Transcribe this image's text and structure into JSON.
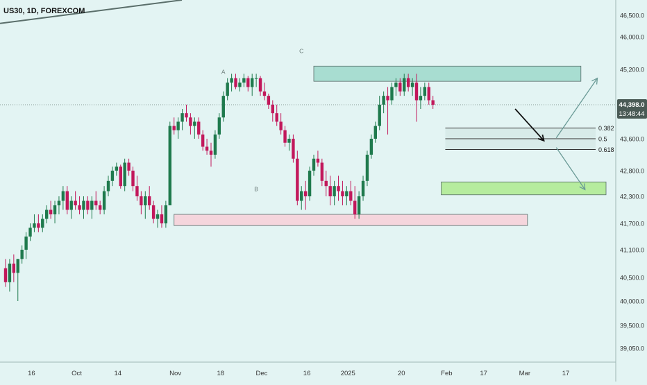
{
  "header": {
    "symbol_title": "US30, 1D, FOREXCOM"
  },
  "price_badge": {
    "price": "44,398.0",
    "countdown": "13:48:44"
  },
  "colors": {
    "background": "#e3f4f3",
    "up_candle": "#1f7a4d",
    "down_candle": "#c2185b",
    "resistance_zone": "#a8ddd1",
    "support_zone": "#f5d5dc",
    "target_zone": "#b6ec9e",
    "fib_zone": "#d4e8e6",
    "axis_text": "#333333",
    "badge_bg": "#4a5a55"
  },
  "chart_data": {
    "type": "candlestick",
    "title": "US30, 1D, FOREXCOM",
    "xlabel": "",
    "ylabel": "",
    "y_range": [
      38900,
      46800
    ],
    "y_ticks": [
      {
        "value": 46500,
        "label": "46,500.0"
      },
      {
        "value": 46000,
        "label": "46,000.0"
      },
      {
        "value": 45200,
        "label": "45,200.0"
      },
      {
        "value": 44398,
        "label": ""
      },
      {
        "value": 43600,
        "label": "43,600.0"
      },
      {
        "value": 42800,
        "label": "42,800.0"
      },
      {
        "value": 42300,
        "label": "42,300.0"
      },
      {
        "value": 41700,
        "label": "41,700.0"
      },
      {
        "value": 41100,
        "label": "41,100.0"
      },
      {
        "value": 40500,
        "label": "40,500.0"
      },
      {
        "value": 40000,
        "label": "40,000.0"
      },
      {
        "value": 39500,
        "label": "39,500.0"
      },
      {
        "value": 39050,
        "label": "39,050.0"
      }
    ],
    "x_range": [
      0,
      136
    ],
    "x_ticks": [
      {
        "index": 7,
        "label": "16"
      },
      {
        "index": 18,
        "label": "Oct"
      },
      {
        "index": 28,
        "label": "14"
      },
      {
        "index": 42,
        "label": "Nov"
      },
      {
        "index": 53,
        "label": "18"
      },
      {
        "index": 63,
        "label": "Dec"
      },
      {
        "index": 74,
        "label": "16"
      },
      {
        "index": 84,
        "label": "2025"
      },
      {
        "index": 97,
        "label": "20"
      },
      {
        "index": 108,
        "label": "Feb"
      },
      {
        "index": 117,
        "label": "17"
      },
      {
        "index": 127,
        "label": "Mar"
      },
      {
        "index": 137,
        "label": "17"
      }
    ],
    "ohlc": [
      [
        40700,
        40900,
        40300,
        40400
      ],
      [
        40400,
        40900,
        40200,
        40800
      ],
      [
        40800,
        41000,
        40400,
        40600
      ],
      [
        40600,
        40900,
        40000,
        40900
      ],
      [
        40900,
        41200,
        40800,
        41100
      ],
      [
        41100,
        41500,
        40900,
        41400
      ],
      [
        41400,
        41700,
        41300,
        41600
      ],
      [
        41600,
        41900,
        41500,
        41700
      ],
      [
        41700,
        41900,
        41500,
        41600
      ],
      [
        41600,
        41900,
        41500,
        41800
      ],
      [
        41800,
        42100,
        41700,
        42000
      ],
      [
        42000,
        42200,
        41800,
        41900
      ],
      [
        41900,
        42200,
        41700,
        42100
      ],
      [
        42100,
        42300,
        41900,
        42200
      ],
      [
        42200,
        42500,
        42000,
        42400
      ],
      [
        42400,
        42500,
        41900,
        42000
      ],
      [
        42000,
        42300,
        41800,
        42200
      ],
      [
        42200,
        42400,
        42000,
        42100
      ],
      [
        42100,
        42300,
        41900,
        42000
      ],
      [
        42000,
        42300,
        41800,
        42200
      ],
      [
        42200,
        42300,
        41900,
        42000
      ],
      [
        42000,
        42300,
        41800,
        42200
      ],
      [
        42200,
        42400,
        42000,
        42100
      ],
      [
        42100,
        42200,
        41900,
        42000
      ],
      [
        42000,
        42500,
        41900,
        42400
      ],
      [
        42400,
        42700,
        42300,
        42600
      ],
      [
        42600,
        42900,
        42500,
        42800
      ],
      [
        42800,
        43000,
        42700,
        42900
      ],
      [
        42900,
        42950,
        42450,
        42500
      ],
      [
        42500,
        43100,
        42400,
        43000
      ],
      [
        43000,
        43100,
        42700,
        42800
      ],
      [
        42800,
        42900,
        42400,
        42500
      ],
      [
        42500,
        42700,
        42200,
        42300
      ],
      [
        42300,
        42400,
        41900,
        42100
      ],
      [
        42100,
        42400,
        41800,
        42300
      ],
      [
        42300,
        42500,
        42000,
        42100
      ],
      [
        42100,
        42200,
        41700,
        41800
      ],
      [
        41800,
        42000,
        41600,
        41900
      ],
      [
        41900,
        42100,
        41600,
        41700
      ],
      [
        41700,
        42200,
        41600,
        42100
      ],
      [
        42100,
        44000,
        42100,
        43900
      ],
      [
        43900,
        44100,
        43700,
        43800
      ],
      [
        43800,
        44100,
        43600,
        44000
      ],
      [
        44000,
        44300,
        43800,
        44200
      ],
      [
        44200,
        44400,
        44000,
        44100
      ],
      [
        44100,
        44200,
        43700,
        43900
      ],
      [
        43900,
        44100,
        43600,
        44000
      ],
      [
        44000,
        44100,
        43600,
        43700
      ],
      [
        43700,
        43800,
        43300,
        43400
      ],
      [
        43400,
        43600,
        43200,
        43300
      ],
      [
        43300,
        43500,
        42900,
        43200
      ],
      [
        43200,
        43800,
        43100,
        43700
      ],
      [
        43700,
        44200,
        43600,
        44100
      ],
      [
        44100,
        44700,
        44000,
        44600
      ],
      [
        44600,
        45000,
        44500,
        44900
      ],
      [
        44900,
        45100,
        44700,
        45000
      ],
      [
        45000,
        45100,
        44750,
        44800
      ],
      [
        44800,
        45000,
        44700,
        44900
      ],
      [
        44900,
        45100,
        44800,
        45000
      ],
      [
        45000,
        45050,
        44700,
        44800
      ],
      [
        44800,
        45100,
        44600,
        45000
      ],
      [
        45000,
        45100,
        44800,
        45000
      ],
      [
        45000,
        45050,
        44600,
        44700
      ],
      [
        44700,
        44900,
        44500,
        44600
      ],
      [
        44600,
        44650,
        44300,
        44400
      ],
      [
        44400,
        44500,
        44000,
        44200
      ],
      [
        44200,
        44400,
        43900,
        44000
      ],
      [
        44000,
        44200,
        43700,
        43800
      ],
      [
        43800,
        43900,
        43400,
        43500
      ],
      [
        43500,
        43700,
        43300,
        43600
      ],
      [
        43600,
        43700,
        43000,
        43100
      ],
      [
        43100,
        43300,
        42100,
        42200
      ],
      [
        42200,
        42500,
        42000,
        42400
      ],
      [
        42400,
        42600,
        42000,
        42300
      ],
      [
        42300,
        42900,
        42200,
        42800
      ],
      [
        42800,
        43200,
        42700,
        43100
      ],
      [
        43100,
        43300,
        42900,
        43000
      ],
      [
        43000,
        43100,
        42500,
        42600
      ],
      [
        42600,
        42800,
        42300,
        42500
      ],
      [
        42500,
        42700,
        42100,
        42300
      ],
      [
        42300,
        42600,
        42100,
        42500
      ],
      [
        42500,
        42700,
        42200,
        42400
      ],
      [
        42400,
        42600,
        42100,
        42300
      ],
      [
        42300,
        42500,
        42100,
        42400
      ],
      [
        42400,
        42600,
        42100,
        42200
      ],
      [
        42200,
        42500,
        41800,
        41900
      ],
      [
        41900,
        42400,
        41800,
        42300
      ],
      [
        42300,
        42700,
        42200,
        42600
      ],
      [
        42600,
        43300,
        42500,
        43200
      ],
      [
        43200,
        43700,
        43100,
        43600
      ],
      [
        43600,
        44000,
        43500,
        43900
      ],
      [
        43900,
        44600,
        43800,
        44400
      ],
      [
        44400,
        44700,
        44200,
        44600
      ],
      [
        44600,
        44800,
        43700,
        44500
      ],
      [
        44500,
        44900,
        44400,
        44800
      ],
      [
        44800,
        45000,
        44600,
        44900
      ],
      [
        44900,
        45000,
        44600,
        44700
      ],
      [
        44700,
        45100,
        44600,
        45000
      ],
      [
        45000,
        45100,
        44700,
        44800
      ],
      [
        44800,
        45000,
        44600,
        44900
      ],
      [
        44900,
        45100,
        44000,
        44500
      ],
      [
        44500,
        44800,
        44300,
        44600
      ],
      [
        44600,
        44900,
        44500,
        44800
      ],
      [
        44800,
        44900,
        44400,
        44500
      ],
      [
        44500,
        44600,
        44300,
        44398
      ]
    ]
  },
  "drawings": {
    "wave_labels": [
      {
        "text": "A",
        "x_index": 53,
        "price": 45100
      },
      {
        "text": "B",
        "x_index": 61,
        "price": 42400
      },
      {
        "text": "C",
        "x_index": 72,
        "price": 45600
      }
    ],
    "zones": [
      {
        "name": "resistance-zone",
        "x_start": 75,
        "x_end": 140,
        "price_top": 45280,
        "price_bottom": 44930,
        "color": "#a8ddd1"
      },
      {
        "name": "support-zone",
        "x_start": 41,
        "x_end": 127,
        "price_top": 41900,
        "price_bottom": 41650,
        "color": "#f5d5dc"
      },
      {
        "name": "target-zone",
        "x_start": 106,
        "x_end": 156,
        "price_top": 42580,
        "price_bottom": 42330,
        "color": "#b6ec9e"
      }
    ],
    "fib_levels": [
      {
        "label": "0.382",
        "price": 43850
      },
      {
        "label": "0.5",
        "price": 43600
      },
      {
        "label": "0.618",
        "price": 43330
      }
    ],
    "fib_x_start": 107,
    "fib_x_end": 154,
    "trendline": {
      "x1": 0,
      "p1": 46150,
      "x2": 47,
      "p2": 46800
    },
    "projection_arrows": [
      {
        "name": "bearish-arrow",
        "color": "#111111",
        "x1": 124,
        "p1": 44300,
        "x2": 131,
        "p2": 43550
      },
      {
        "name": "bullish-arrow",
        "color": "#6a9a96",
        "x1": 134,
        "p1": 43620,
        "x2": 144,
        "p2": 45000
      },
      {
        "name": "downside-arrow",
        "color": "#6a9a96",
        "x1": 134,
        "p1": 43380,
        "x2": 141,
        "p2": 42430
      }
    ]
  }
}
